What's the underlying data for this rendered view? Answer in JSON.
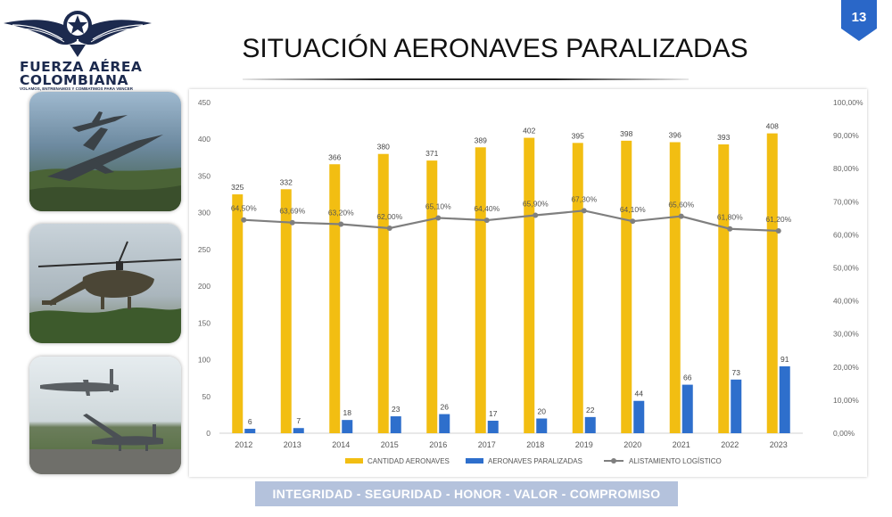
{
  "brand": {
    "line1": "FUERZA AÉREA",
    "line2": "COLOMBIANA",
    "tagline": "VOLAMOS, ENTRENAMOS Y COMBATIMOS PARA VENCER"
  },
  "slide": {
    "title": "SITUACIÓN AERONAVES PARALIZADAS",
    "page_number": "13",
    "footer": "INTEGRIDAD - SEGURIDAD - HONOR - VALOR - COMPROMISO"
  },
  "photos": [
    {
      "subject": "fighter-jets"
    },
    {
      "subject": "helicopter"
    },
    {
      "subject": "drones"
    }
  ],
  "colors": {
    "cantidad": "#f2be12",
    "paralizadas": "#2e6fcc",
    "alistamiento": "#7f7f7f",
    "brand_navy": "#1c2a4e",
    "badge": "#2a67c8",
    "footer_band": "#b4c2dc"
  },
  "chart_data": {
    "type": "bar",
    "categories": [
      "2012",
      "2013",
      "2014",
      "2015",
      "2016",
      "2017",
      "2018",
      "2019",
      "2020",
      "2021",
      "2022",
      "2023"
    ],
    "series": [
      {
        "name": "CANTIDAD AERONAVES",
        "kind": "bar",
        "axis": "left",
        "values": [
          325,
          332,
          366,
          380,
          371,
          389,
          402,
          395,
          398,
          396,
          393,
          408
        ],
        "labels": [
          "325",
          "332",
          "366",
          "380",
          "371",
          "389",
          "402",
          "395",
          "398",
          "396",
          "393",
          "408"
        ]
      },
      {
        "name": "AERONAVES PARALIZADAS",
        "kind": "bar",
        "axis": "left",
        "values": [
          6,
          7,
          18,
          23,
          26,
          17,
          20,
          22,
          44,
          66,
          73,
          91
        ],
        "labels": [
          "6",
          "7",
          "18",
          "23",
          "26",
          "17",
          "20",
          "22",
          "44",
          "66",
          "73",
          "91"
        ]
      },
      {
        "name": "ALISTAMIENTO LOGÍSTICO",
        "kind": "line",
        "axis": "right",
        "values": [
          64.5,
          63.69,
          63.2,
          62.0,
          65.1,
          64.4,
          65.9,
          67.3,
          64.1,
          65.6,
          61.8,
          61.2
        ],
        "labels": [
          "64,50%",
          "63,69%",
          "63,20%",
          "62,00%",
          "65,10%",
          "64,40%",
          "65,90%",
          "67,30%",
          "64,10%",
          "65,60%",
          "61,80%",
          "61,20%"
        ]
      }
    ],
    "y_left": {
      "min": 0,
      "max": 450,
      "ticks": [
        "0",
        "50",
        "100",
        "150",
        "200",
        "250",
        "300",
        "350",
        "400",
        "450"
      ]
    },
    "y_right": {
      "min": 0,
      "max": 100,
      "ticks": [
        "0,00%",
        "10,00%",
        "20,00%",
        "30,00%",
        "40,00%",
        "50,00%",
        "60,00%",
        "70,00%",
        "80,00%",
        "90,00%",
        "100,00%"
      ]
    },
    "legend_position": "bottom",
    "grid": false
  }
}
